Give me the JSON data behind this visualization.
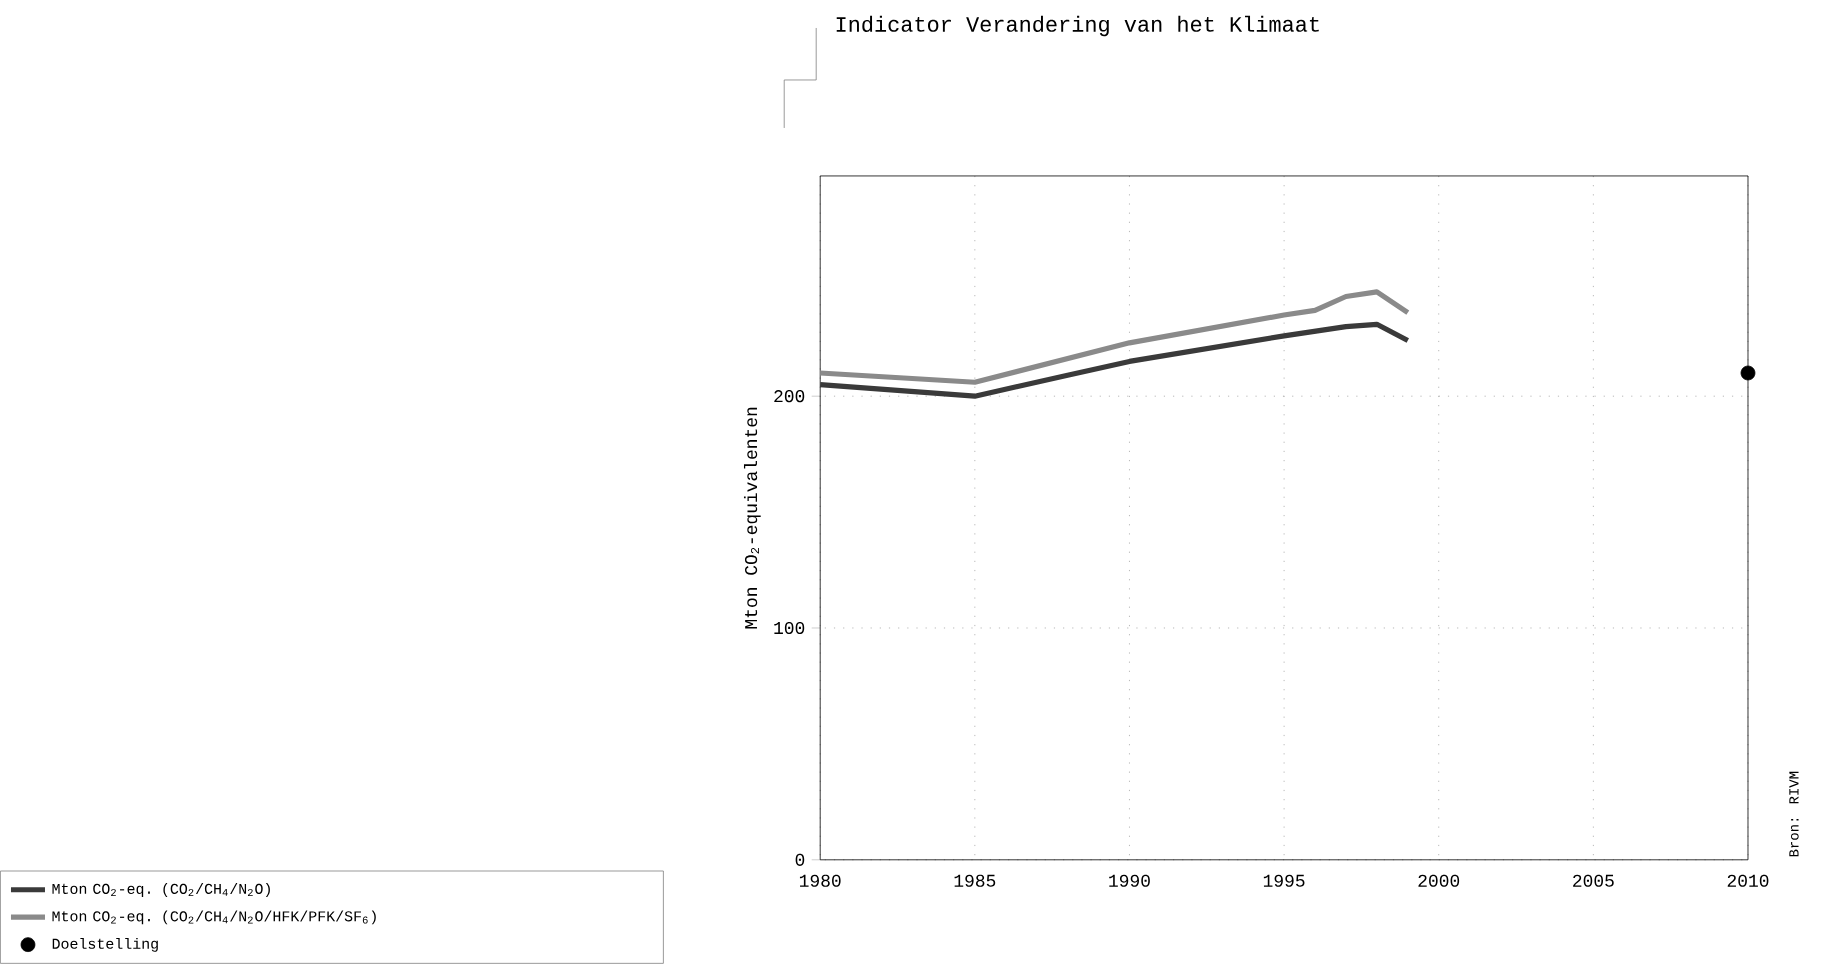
{
  "chart_data": {
    "type": "line",
    "title": "Indicator Verandering van het Klimaat",
    "ylabel": "Mton CO$_{2}$-equivalenten",
    "annotations": [
      "Bron: RIVM"
    ],
    "xlim": [
      1980,
      2010
    ],
    "xticks": [
      1980,
      1985,
      1990,
      1995,
      2000,
      2005,
      2010
    ],
    "ylim": [
      0,
      295
    ],
    "yticks": [
      0,
      100,
      200
    ],
    "grid": true,
    "legend": "bottom left",
    "series": [
      {
        "name": "Mton CO$_{2}$-eq. (CO$_{2}$/CH$_{4}$/N$_{2}$O)",
        "color": "#3a3a3a",
        "x": [
          1980,
          1985,
          1988,
          1990,
          1995,
          1997,
          1998,
          1999
        ],
        "values": [
          205,
          200,
          209,
          215,
          226,
          230,
          231,
          224
        ]
      },
      {
        "name": "Mton CO$_{2}$-eq. (CO$_{2}$/CH$_{4}$/N$_{2}$O/HFK/PFK/SF$_{6}$)",
        "color": "#8a8a8a",
        "x": [
          1980,
          1985,
          1990,
          1995,
          1996,
          1997,
          1998,
          1999
        ],
        "values": [
          210,
          206,
          223,
          235,
          237,
          243,
          245,
          236
        ]
      },
      {
        "name": "Doelstelling",
        "type": "scatter",
        "color": "#000000",
        "x": [
          2010
        ],
        "values": [
          210
        ]
      }
    ]
  }
}
